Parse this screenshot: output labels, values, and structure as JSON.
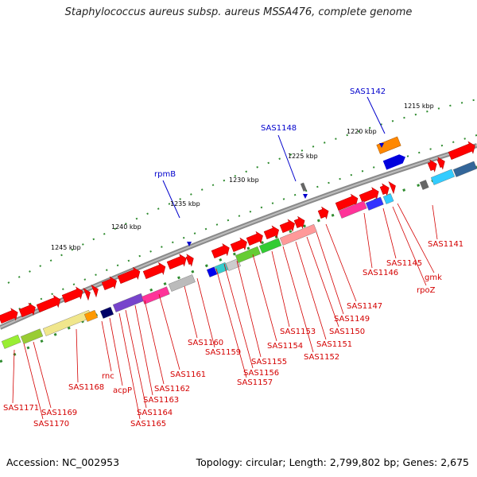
{
  "title": "Staphylococcus aureus subsp. aureus MSSA476, complete genome",
  "footer": {
    "accession": "Accession: NC_002953",
    "stats": "Topology: circular; Length: 2,799,802 bp; Genes: 2,675"
  },
  "colors": {
    "backbone": "#8a8a8a",
    "gene_arrow": "#ff0000",
    "tick": "#2e8b2e",
    "label_red": "#d40000",
    "label_blue": "#0000cc"
  },
  "scale_labels": [
    "1215 kbp",
    "1220 kbp",
    "1225 kbp",
    "1230 kbp",
    "1235 kbp",
    "1240 kbp",
    "1245 kbp"
  ],
  "named_genes": [
    "SAS1142",
    "SAS1148",
    "rpmB"
  ],
  "gene_labels": [
    "SAS1141",
    "SAS1145",
    "SAS1146",
    "gmk",
    "rpoZ",
    "SAS1147",
    "SAS1149",
    "SAS1150",
    "SAS1151",
    "SAS1152",
    "SAS1153",
    "SAS1154",
    "SAS1155",
    "SAS1156",
    "SAS1157",
    "SAS1159",
    "SAS1160",
    "SAS1161",
    "SAS1162",
    "SAS1163",
    "SAS1164",
    "SAS1165",
    "acpP",
    "rnc",
    "SAS1168",
    "SAS1169",
    "SAS1170",
    "SAS1171"
  ]
}
